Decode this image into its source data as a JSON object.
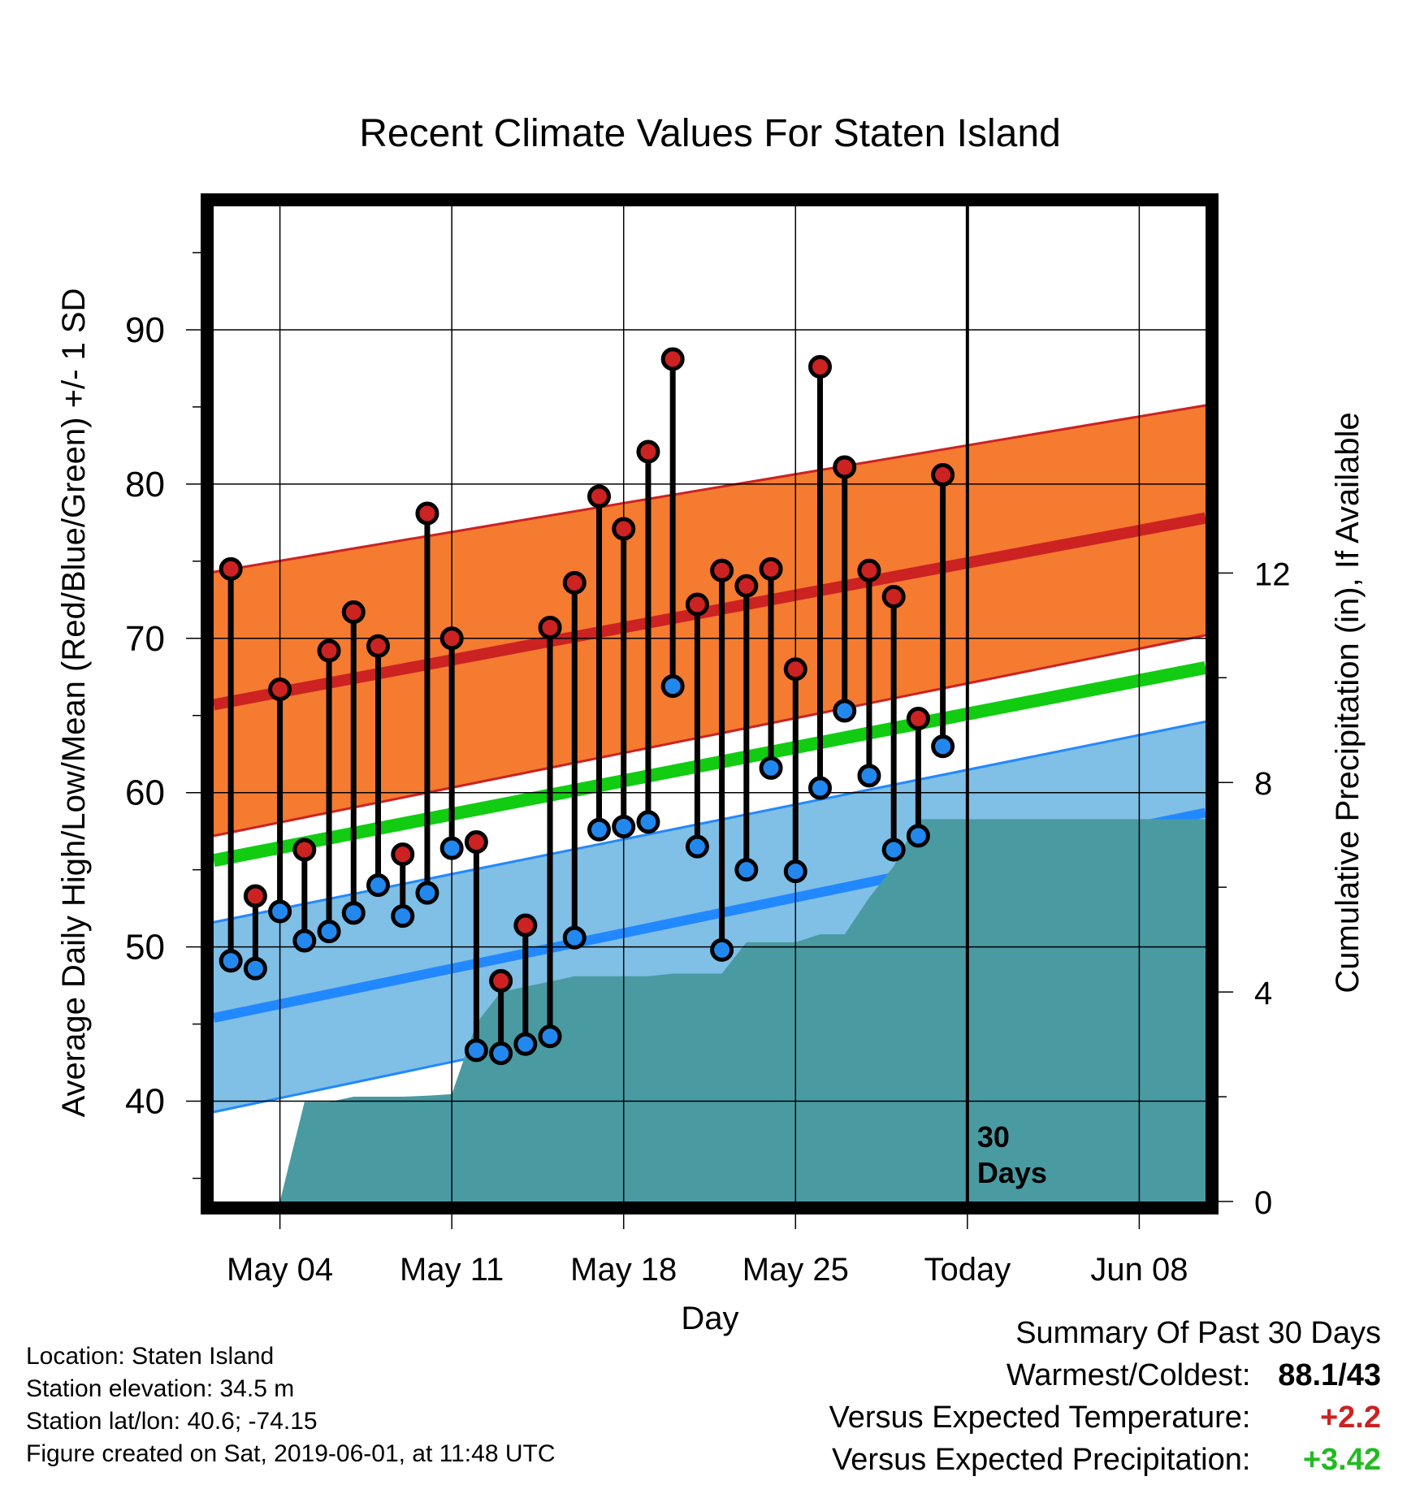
{
  "chart_data": {
    "type": "line",
    "title": "Recent Climate Values For Staten Island",
    "xlabel": "Day",
    "ylabel": "Average Daily High/Low/Mean (Red/Blue/Green) +/- 1 SD",
    "y2label": "Cumulative Precipitation (in), If Available",
    "x_tick_labels": [
      "May 04",
      "May 11",
      "May 18",
      "May 25",
      "Today",
      "Jun 08"
    ],
    "x_tick_days": [
      4,
      11,
      18,
      25,
      32,
      39
    ],
    "xlim": [
      1.3,
      41.7
    ],
    "ylim": [
      33.5,
      98
    ],
    "y_ticks": [
      40,
      50,
      60,
      70,
      80,
      90
    ],
    "y2lim": [
      0,
      19
    ],
    "y2_ticks": [
      0,
      4,
      8,
      12
    ],
    "today_day": 32,
    "today_annotation": [
      "30",
      "Days"
    ],
    "normals": {
      "days": [
        1.3,
        41.7
      ],
      "high_mean": [
        65.7,
        77.8
      ],
      "high_upper": [
        74.3,
        85.1
      ],
      "high_lower": [
        57.2,
        70.2
      ],
      "mean": [
        55.6,
        68.1
      ],
      "low_mean": [
        45.4,
        58.7
      ],
      "low_upper": [
        51.6,
        64.6
      ],
      "low_lower": [
        39.3,
        52.8
      ]
    },
    "daily": [
      {
        "day": 2,
        "high": 74.5,
        "low": 49.1
      },
      {
        "day": 3,
        "high": 53.3,
        "low": 48.6
      },
      {
        "day": 4,
        "high": 66.7,
        "low": 52.3
      },
      {
        "day": 5,
        "high": 56.3,
        "low": 50.4
      },
      {
        "day": 6,
        "high": 69.2,
        "low": 51.0
      },
      {
        "day": 7,
        "high": 71.7,
        "low": 52.2
      },
      {
        "day": 8,
        "high": 69.5,
        "low": 54.0
      },
      {
        "day": 9,
        "high": 56.0,
        "low": 52.0
      },
      {
        "day": 10,
        "high": 78.1,
        "low": 53.5
      },
      {
        "day": 11,
        "high": 70.0,
        "low": 56.4
      },
      {
        "day": 12,
        "high": 56.8,
        "low": 43.3
      },
      {
        "day": 13,
        "high": 47.8,
        "low": 43.1
      },
      {
        "day": 14,
        "high": 51.4,
        "low": 43.7
      },
      {
        "day": 15,
        "high": 70.7,
        "low": 44.2
      },
      {
        "day": 16,
        "high": 73.6,
        "low": 50.6
      },
      {
        "day": 17,
        "high": 79.2,
        "low": 57.6
      },
      {
        "day": 18,
        "high": 77.1,
        "low": 57.8
      },
      {
        "day": 19,
        "high": 82.1,
        "low": 58.1
      },
      {
        "day": 20,
        "high": 88.1,
        "low": 66.9
      },
      {
        "day": 21,
        "high": 72.2,
        "low": 56.5
      },
      {
        "day": 22,
        "high": 74.4,
        "low": 49.8
      },
      {
        "day": 23,
        "high": 73.4,
        "low": 55.0
      },
      {
        "day": 24,
        "high": 74.5,
        "low": 61.6
      },
      {
        "day": 25,
        "high": 68.0,
        "low": 54.9
      },
      {
        "day": 26,
        "high": 87.6,
        "low": 60.3
      },
      {
        "day": 27,
        "high": 81.1,
        "low": 65.3
      },
      {
        "day": 28,
        "high": 74.4,
        "low": 61.1
      },
      {
        "day": 29,
        "high": 72.7,
        "low": 56.3
      },
      {
        "day": 30,
        "high": 64.8,
        "low": 57.2
      },
      {
        "day": 31,
        "high": 80.6,
        "low": 63.0
      }
    ],
    "precip_cumulative": {
      "days": [
        4,
        5,
        6,
        7,
        8,
        9,
        10,
        11,
        12,
        13,
        14,
        15,
        16,
        17,
        18,
        19,
        20,
        21,
        22,
        23,
        24,
        25,
        26,
        27,
        28,
        29,
        30,
        31,
        32,
        35,
        38,
        41.7
      ],
      "values": [
        0,
        1.9,
        1.9,
        2.0,
        2.0,
        2.0,
        2.02,
        2.05,
        3.4,
        4.0,
        4.1,
        4.2,
        4.3,
        4.3,
        4.3,
        4.3,
        4.35,
        4.35,
        4.35,
        4.95,
        4.95,
        4.95,
        5.1,
        5.1,
        5.8,
        6.4,
        7.3,
        7.3,
        7.3,
        7.3,
        7.3,
        7.3
      ]
    },
    "colors": {
      "high_band": "#f47b30",
      "high_mean": "#cc2222",
      "low_band": "#80bfe6",
      "low_mean": "#2288ff",
      "mean": "#11cc11",
      "precip": "#4a9aa2",
      "high_dot": "#cc2222",
      "low_dot": "#2288ee"
    },
    "grid": true
  },
  "footer": {
    "location": "Location: Staten Island",
    "elevation": "Station elevation: 34.5 m",
    "latlon": "Station lat/lon: 40.6; -74.15",
    "created": "Figure created on Sat, 2019-06-01, at 11:48 UTC"
  },
  "summary": {
    "title": "Summary Of Past 30 Days",
    "warmest_label": "Warmest/Coldest:",
    "warmest_value": "88.1/43",
    "temp_label": "Versus Expected Temperature:",
    "temp_value": "+2.2",
    "precip_label": "Versus Expected Precipitation:",
    "precip_value": "+3.42"
  }
}
